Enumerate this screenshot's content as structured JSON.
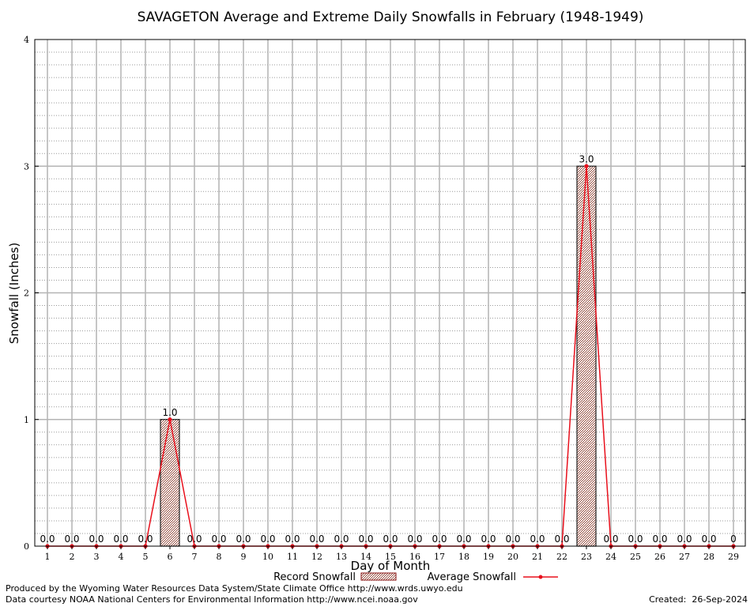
{
  "chart_data": {
    "type": "bar",
    "title": "SAVAGETON Average and Extreme Daily Snowfalls in February (1948-1949)",
    "xlabel": "Day of Month",
    "ylabel": "Snowfall (Inches)",
    "ylim": [
      0,
      4
    ],
    "yticks": [
      "0",
      "1",
      "2",
      "3",
      "4"
    ],
    "categories": [
      "1",
      "2",
      "3",
      "4",
      "5",
      "6",
      "7",
      "8",
      "9",
      "10",
      "11",
      "12",
      "13",
      "14",
      "15",
      "16",
      "17",
      "18",
      "19",
      "20",
      "21",
      "22",
      "23",
      "24",
      "25",
      "26",
      "27",
      "28",
      "29"
    ],
    "series": [
      {
        "name": "Record Snowfall",
        "kind": "bar",
        "values": [
          0,
          0,
          0,
          0,
          0,
          1.0,
          0,
          0,
          0,
          0,
          0,
          0,
          0,
          0,
          0,
          0,
          0,
          0,
          0,
          0,
          0,
          0,
          3.0,
          0,
          0,
          0,
          0,
          0,
          0
        ]
      },
      {
        "name": "Average Snowfall",
        "kind": "line",
        "color": "#e8101c",
        "values": [
          0,
          0,
          0,
          0,
          0,
          1.0,
          0,
          0,
          0,
          0,
          0,
          0,
          0,
          0,
          0,
          0,
          0,
          0,
          0,
          0,
          0,
          0,
          3.0,
          0,
          0,
          0,
          0,
          0,
          0
        ]
      }
    ],
    "data_labels": [
      "0.0",
      "0.0",
      "0.0",
      "0.0",
      "0.0",
      "1.0",
      "0.0",
      "0.0",
      "0.0",
      "0.0",
      "0.0",
      "0.0",
      "0.0",
      "0.0",
      "0.0",
      "0.0",
      "0.0",
      "0.0",
      "0.0",
      "0.0",
      "0.0",
      "0.0",
      "3.0",
      "0.0",
      "0.0",
      "0.0",
      "0.0",
      "0.0",
      "0"
    ],
    "grid": true,
    "legend": "bottom"
  },
  "footer": {
    "line1": "Produced by the Wyoming Water Resources Data System/State Climate Office http://www.wrds.uwyo.edu",
    "line2": "Data courtesy NOAA National Centers for Environmental Information http://www.ncei.noaa.gov",
    "created": "Created:  26-Sep-2024"
  }
}
